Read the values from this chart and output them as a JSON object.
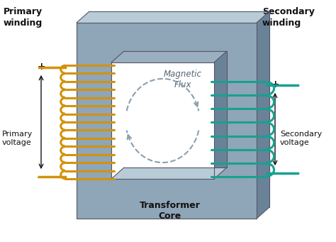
{
  "core_color": "#8fa5b8",
  "core_light": "#b8ccd8",
  "core_dark": "#6a8298",
  "core_mid": "#9aafbf",
  "primary_coil_color": "#d4920a",
  "secondary_coil_color": "#18a090",
  "flux_color": "#8a9faf",
  "text_color": "#111111",
  "bg_color": "#ffffff",
  "primary_label": "Primary\nwinding",
  "secondary_label": "Secondary\nwinding",
  "primary_voltage_label": "Primary\nvoltage",
  "secondary_voltage_label": "Secondary\nvoltage",
  "magnetic_flux_label": "Magnetic\nFlux",
  "transformer_core_label": "Transformer\nCore",
  "core_outline": "#555566"
}
